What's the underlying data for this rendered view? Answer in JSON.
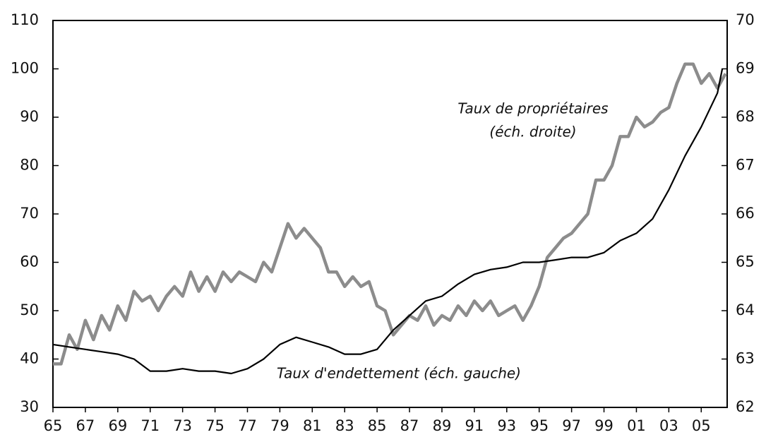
{
  "chart_data": {
    "type": "line",
    "annotations": [
      "Taux de propriétaires",
      "(éch. droite)",
      "Taux d'endettement (éch. gauche)"
    ],
    "xlim": [
      1965,
      2006.6
    ],
    "xticks": [
      {
        "value": 1965,
        "label": "65"
      },
      {
        "value": 1967,
        "label": "67"
      },
      {
        "value": 1969,
        "label": "69"
      },
      {
        "value": 1971,
        "label": "71"
      },
      {
        "value": 1973,
        "label": "73"
      },
      {
        "value": 1975,
        "label": "75"
      },
      {
        "value": 1977,
        "label": "77"
      },
      {
        "value": 1979,
        "label": "79"
      },
      {
        "value": 1981,
        "label": "81"
      },
      {
        "value": 1983,
        "label": "83"
      },
      {
        "value": 1985,
        "label": "85"
      },
      {
        "value": 1987,
        "label": "87"
      },
      {
        "value": 1989,
        "label": "89"
      },
      {
        "value": 1991,
        "label": "91"
      },
      {
        "value": 1993,
        "label": "93"
      },
      {
        "value": 1995,
        "label": "95"
      },
      {
        "value": 1997,
        "label": "97"
      },
      {
        "value": 1999,
        "label": "99"
      },
      {
        "value": 2001,
        "label": "01"
      },
      {
        "value": 2003,
        "label": "03"
      },
      {
        "value": 2005,
        "label": "05"
      }
    ],
    "ylim": [
      30,
      110
    ],
    "yticks": [
      30,
      40,
      50,
      60,
      70,
      80,
      90,
      100,
      110
    ],
    "y2lim": [
      62,
      70
    ],
    "y2ticks": [
      62,
      63,
      64,
      65,
      66,
      67,
      68,
      69,
      70
    ],
    "grid": false,
    "series": [
      {
        "name": "Taux de propriétaires",
        "color": "#8c8c8c",
        "axis": "y2",
        "x": [
          1965,
          1965.5,
          1966,
          1966.5,
          1967,
          1967.5,
          1968,
          1968.5,
          1969,
          1969.5,
          1970,
          1970.5,
          1971,
          1971.5,
          1972,
          1972.5,
          1973,
          1973.5,
          1974,
          1974.5,
          1975,
          1975.5,
          1976,
          1976.5,
          1977,
          1977.5,
          1978,
          1978.5,
          1979,
          1979.5,
          1980,
          1980.5,
          1981,
          1981.5,
          1982,
          1982.5,
          1983,
          1983.5,
          1984,
          1984.5,
          1985,
          1985.5,
          1986,
          1986.5,
          1987,
          1987.5,
          1988,
          1988.5,
          1989,
          1989.5,
          1990,
          1990.5,
          1991,
          1991.5,
          1992,
          1992.5,
          1993,
          1993.5,
          1994,
          1994.5,
          1995,
          1995.5,
          1996,
          1996.5,
          1997,
          1997.5,
          1998,
          1998.5,
          1999,
          1999.5,
          2000,
          2000.5,
          2001,
          2001.5,
          2002,
          2002.5,
          2003,
          2003.5,
          2004,
          2004.5,
          2005,
          2005.5,
          2006,
          2006.5
        ],
        "values": [
          62.9,
          62.9,
          63.5,
          63.2,
          63.8,
          63.4,
          63.9,
          63.6,
          64.1,
          63.8,
          64.4,
          64.2,
          64.3,
          64.0,
          64.3,
          64.5,
          64.3,
          64.8,
          64.4,
          64.7,
          64.4,
          64.8,
          64.6,
          64.8,
          64.7,
          64.6,
          65.0,
          64.8,
          65.3,
          65.8,
          65.5,
          65.7,
          65.5,
          65.3,
          64.8,
          64.8,
          64.5,
          64.7,
          64.5,
          64.6,
          64.1,
          64.0,
          63.5,
          63.7,
          63.9,
          63.8,
          64.1,
          63.7,
          63.9,
          63.8,
          64.1,
          63.9,
          64.2,
          64.0,
          64.2,
          63.9,
          64.0,
          64.1,
          63.8,
          64.1,
          64.5,
          65.1,
          65.3,
          65.5,
          65.6,
          65.8,
          66.0,
          66.7,
          66.7,
          67.0,
          67.6,
          67.6,
          68.0,
          67.8,
          67.9,
          68.1,
          68.2,
          68.7,
          69.1,
          69.1,
          68.7,
          68.9,
          68.6,
          68.9
        ]
      },
      {
        "name": "Taux d'endettement",
        "color": "#000000",
        "x": [
          1965,
          1966,
          1967,
          1968,
          1969,
          1970,
          1971,
          1972,
          1973,
          1974,
          1975,
          1976,
          1977,
          1978,
          1979,
          1980,
          1981,
          1982,
          1983,
          1984,
          1985,
          1986,
          1987,
          1988,
          1989,
          1990,
          1991,
          1992,
          1993,
          1994,
          1995,
          1996,
          1997,
          1998,
          1999,
          2000,
          2001,
          2002,
          2003,
          2004,
          2005,
          2006,
          2006.3
        ],
        "values": [
          43,
          42.5,
          42,
          41.5,
          41,
          40,
          37.5,
          37.5,
          38,
          37.5,
          37.5,
          37,
          38,
          40,
          43,
          44.5,
          43.5,
          42.5,
          41,
          41,
          42,
          46,
          49,
          52,
          53,
          55.5,
          57.5,
          58.5,
          59,
          60,
          60,
          60.5,
          61,
          61,
          62,
          64.5,
          66,
          69,
          75,
          82,
          88,
          95,
          100
        ]
      }
    ]
  }
}
